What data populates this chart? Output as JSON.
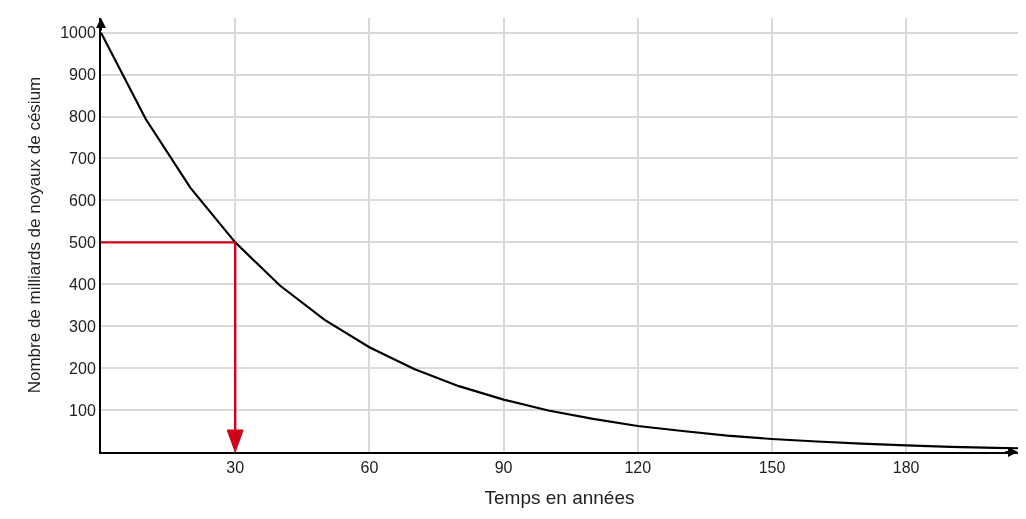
{
  "chart_data": {
    "type": "line",
    "xlabel": "Temps en années",
    "ylabel": "Nombre de milliards de noyaux de césium",
    "series": [
      {
        "x": [
          0,
          10,
          20,
          30,
          40,
          50,
          60,
          70,
          80,
          90,
          100,
          110,
          120,
          130,
          140,
          150,
          160,
          170,
          180,
          190,
          200,
          205
        ],
        "values": [
          1000,
          794,
          630,
          500,
          397,
          315,
          250,
          198,
          157,
          125,
          99,
          79,
          62,
          50,
          39,
          31,
          25,
          20,
          16,
          12,
          10,
          9
        ],
        "color": "#000000",
        "line_style": "solid"
      }
    ],
    "ref_lines": [
      {
        "axis": "y",
        "value": 500,
        "color": "#d0021b",
        "line_style": "solid"
      },
      {
        "axis": "x",
        "value": 30,
        "color": "#d0021b",
        "line_style": "solid"
      }
    ],
    "xlim": [
      0,
      205
    ],
    "xticks": [
      30,
      60,
      90,
      120,
      150,
      180
    ],
    "ylim": [
      0,
      1035
    ],
    "yticks": [
      100,
      200,
      300,
      400,
      500,
      600,
      700,
      800,
      900,
      1000
    ],
    "grid": true,
    "marker": "none"
  }
}
